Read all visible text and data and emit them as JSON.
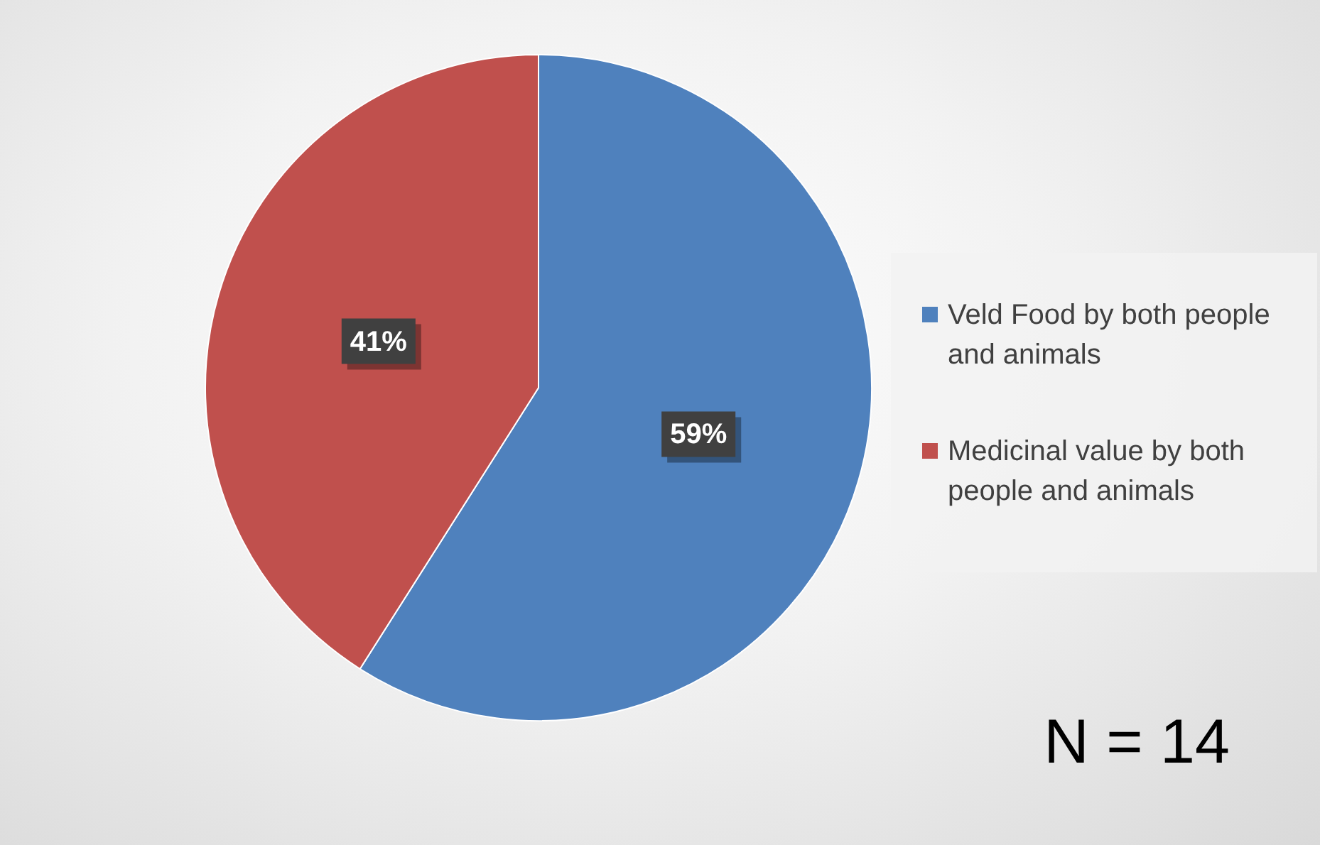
{
  "chart_data": {
    "type": "pie",
    "categories": [
      "Veld Food by both people and animals",
      "Medicinal value by both people and animals"
    ],
    "values": [
      59,
      41
    ],
    "colors": [
      "#4f81bd",
      "#c0504d"
    ],
    "value_labels": [
      "59%",
      "41%"
    ],
    "legend": "right",
    "annotations": [
      "N = 14"
    ]
  }
}
